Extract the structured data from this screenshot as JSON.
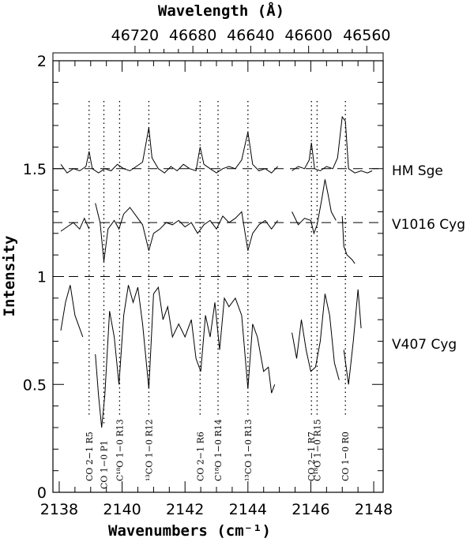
{
  "chart_data": {
    "type": "line",
    "xlabel": "Wavenumbers (cm⁻¹)",
    "ylabel": "Intensity",
    "top_xlabel": "Wavelength (Å)",
    "xlim": [
      2137.8,
      2148.3
    ],
    "ylim": [
      0,
      2
    ],
    "x_ticks": [
      2138,
      2140,
      2142,
      2144,
      2146,
      2148
    ],
    "x_tick_labels": [
      "2138",
      "2140",
      "2142",
      "2144",
      "2146",
      "2148"
    ],
    "y_ticks": [
      0,
      0.5,
      1,
      1.5,
      2
    ],
    "y_tick_labels": [
      "0",
      "0.5",
      "1",
      "1.5",
      "2"
    ],
    "top_ticks_wavenumber": [
      2140.41,
      2142.25,
      2144.09,
      2145.93,
      2147.78
    ],
    "top_tick_labels": [
      "46720",
      "46680",
      "46640",
      "46600",
      "46560"
    ],
    "reference_lines": [
      {
        "y": 1.5,
        "style": "dashed"
      },
      {
        "y": 1.25,
        "style": "dashed"
      },
      {
        "y": 1.0,
        "style": "dashed"
      }
    ],
    "line_markers": [
      {
        "x": 2138.95,
        "label": "CO 2−1 R5"
      },
      {
        "x": 2139.42,
        "label": "CO 1−0 P1"
      },
      {
        "x": 2139.92,
        "label": "C¹⁸O 1−0 R13"
      },
      {
        "x": 2140.85,
        "label": "¹³CO 1−0 R12"
      },
      {
        "x": 2142.48,
        "label": "CO 2−1 R6"
      },
      {
        "x": 2143.05,
        "label": "C¹⁸O 1−0 R14"
      },
      {
        "x": 2144.0,
        "label": "¹³CO 1−0 R13"
      },
      {
        "x": 2146.02,
        "label": "CO 2−1 R7"
      },
      {
        "x": 2146.2,
        "label": "C¹⁸O 1−0 R15"
      },
      {
        "x": 2147.1,
        "label": "CO 1−0 R0"
      }
    ],
    "series": [
      {
        "name": "HM Sge",
        "segments": [
          [
            [
              2138.05,
              1.52
            ],
            [
              2138.25,
              1.48
            ],
            [
              2138.45,
              1.5
            ],
            [
              2138.65,
              1.49
            ],
            [
              2138.85,
              1.51
            ],
            [
              2138.95,
              1.58
            ],
            [
              2139.05,
              1.5
            ],
            [
              2139.25,
              1.48
            ],
            [
              2139.45,
              1.5
            ],
            [
              2139.65,
              1.49
            ],
            [
              2139.85,
              1.52
            ],
            [
              2140.05,
              1.5
            ],
            [
              2140.25,
              1.49
            ],
            [
              2140.45,
              1.51
            ],
            [
              2140.65,
              1.53
            ],
            [
              2140.85,
              1.69
            ],
            [
              2140.95,
              1.55
            ],
            [
              2141.15,
              1.5
            ],
            [
              2141.35,
              1.48
            ],
            [
              2141.55,
              1.51
            ],
            [
              2141.75,
              1.49
            ],
            [
              2141.95,
              1.52
            ],
            [
              2142.15,
              1.5
            ],
            [
              2142.35,
              1.49
            ],
            [
              2142.48,
              1.6
            ],
            [
              2142.6,
              1.52
            ],
            [
              2142.8,
              1.5
            ],
            [
              2143.0,
              1.48
            ],
            [
              2143.2,
              1.5
            ],
            [
              2143.4,
              1.51
            ],
            [
              2143.6,
              1.5
            ],
            [
              2143.8,
              1.54
            ],
            [
              2144.0,
              1.67
            ],
            [
              2144.15,
              1.52
            ],
            [
              2144.35,
              1.49
            ],
            [
              2144.55,
              1.5
            ],
            [
              2144.75,
              1.48
            ],
            [
              2144.95,
              1.51
            ]
          ],
          [
            [
              2145.4,
              1.49
            ],
            [
              2145.6,
              1.51
            ],
            [
              2145.8,
              1.5
            ],
            [
              2145.95,
              1.54
            ],
            [
              2146.02,
              1.62
            ],
            [
              2146.12,
              1.5
            ],
            [
              2146.3,
              1.49
            ],
            [
              2146.5,
              1.51
            ],
            [
              2146.7,
              1.5
            ],
            [
              2146.85,
              1.55
            ],
            [
              2147.0,
              1.74
            ],
            [
              2147.1,
              1.72
            ],
            [
              2147.2,
              1.5
            ],
            [
              2147.4,
              1.48
            ],
            [
              2147.6,
              1.49
            ],
            [
              2147.8,
              1.48
            ],
            [
              2147.95,
              1.49
            ]
          ]
        ]
      },
      {
        "name": "V1016 Cyg",
        "segments": [
          [
            [
              2138.05,
              1.21
            ],
            [
              2138.25,
              1.23
            ],
            [
              2138.45,
              1.25
            ],
            [
              2138.65,
              1.22
            ],
            [
              2138.8,
              1.27
            ],
            [
              2138.95,
              1.22
            ]
          ],
          [
            [
              2139.15,
              1.34
            ],
            [
              2139.3,
              1.25
            ],
            [
              2139.42,
              1.07
            ],
            [
              2139.55,
              1.22
            ],
            [
              2139.75,
              1.26
            ],
            [
              2139.9,
              1.22
            ],
            [
              2140.05,
              1.29
            ],
            [
              2140.25,
              1.32
            ],
            [
              2140.45,
              1.28
            ],
            [
              2140.65,
              1.24
            ],
            [
              2140.85,
              1.12
            ],
            [
              2141.0,
              1.2
            ],
            [
              2141.2,
              1.22
            ],
            [
              2141.4,
              1.25
            ],
            [
              2141.6,
              1.24
            ],
            [
              2141.8,
              1.26
            ],
            [
              2142.0,
              1.23
            ],
            [
              2142.2,
              1.25
            ],
            [
              2142.4,
              1.2
            ],
            [
              2142.6,
              1.24
            ],
            [
              2142.8,
              1.26
            ],
            [
              2143.0,
              1.22
            ],
            [
              2143.2,
              1.28
            ],
            [
              2143.4,
              1.25
            ],
            [
              2143.6,
              1.27
            ],
            [
              2143.8,
              1.3
            ],
            [
              2144.0,
              1.12
            ],
            [
              2144.15,
              1.2
            ],
            [
              2144.35,
              1.24
            ],
            [
              2144.55,
              1.26
            ],
            [
              2144.75,
              1.22
            ],
            [
              2144.95,
              1.26
            ]
          ],
          [
            [
              2145.4,
              1.3
            ],
            [
              2145.6,
              1.24
            ],
            [
              2145.8,
              1.27
            ],
            [
              2146.0,
              1.26
            ],
            [
              2146.1,
              1.2
            ],
            [
              2146.2,
              1.24
            ],
            [
              2146.35,
              1.36
            ],
            [
              2146.45,
              1.45
            ],
            [
              2146.55,
              1.38
            ],
            [
              2146.65,
              1.3
            ],
            [
              2146.8,
              1.26
            ]
          ],
          [
            [
              2147.0,
              1.28
            ],
            [
              2147.05,
              1.14
            ],
            [
              2147.15,
              1.1
            ],
            [
              2147.3,
              1.08
            ],
            [
              2147.4,
              1.06
            ]
          ]
        ]
      },
      {
        "name": "V407 Cyg",
        "segments": [
          [
            [
              2138.05,
              0.75
            ],
            [
              2138.2,
              0.88
            ],
            [
              2138.35,
              0.96
            ],
            [
              2138.5,
              0.82
            ],
            [
              2138.65,
              0.76
            ],
            [
              2138.75,
              0.72
            ]
          ],
          [
            [
              2139.15,
              0.64
            ],
            [
              2139.25,
              0.45
            ],
            [
              2139.35,
              0.3
            ],
            [
              2139.45,
              0.45
            ],
            [
              2139.6,
              0.84
            ],
            [
              2139.75,
              0.72
            ],
            [
              2139.9,
              0.5
            ],
            [
              2140.05,
              0.82
            ],
            [
              2140.2,
              0.96
            ],
            [
              2140.35,
              0.88
            ],
            [
              2140.5,
              0.95
            ],
            [
              2140.65,
              0.78
            ],
            [
              2140.85,
              0.48
            ],
            [
              2141.0,
              0.92
            ],
            [
              2141.15,
              0.95
            ],
            [
              2141.3,
              0.8
            ],
            [
              2141.45,
              0.86
            ],
            [
              2141.6,
              0.72
            ],
            [
              2141.8,
              0.78
            ],
            [
              2142.0,
              0.72
            ],
            [
              2142.2,
              0.8
            ],
            [
              2142.35,
              0.62
            ],
            [
              2142.5,
              0.56
            ],
            [
              2142.65,
              0.82
            ],
            [
              2142.8,
              0.72
            ],
            [
              2142.95,
              0.88
            ],
            [
              2143.1,
              0.66
            ],
            [
              2143.25,
              0.9
            ],
            [
              2143.4,
              0.86
            ],
            [
              2143.6,
              0.9
            ],
            [
              2143.8,
              0.82
            ],
            [
              2144.0,
              0.48
            ],
            [
              2144.15,
              0.78
            ],
            [
              2144.3,
              0.72
            ],
            [
              2144.5,
              0.56
            ],
            [
              2144.65,
              0.58
            ],
            [
              2144.75,
              0.46
            ],
            [
              2144.85,
              0.5
            ]
          ],
          [
            [
              2145.4,
              0.74
            ],
            [
              2145.55,
              0.62
            ],
            [
              2145.7,
              0.8
            ],
            [
              2145.85,
              0.66
            ],
            [
              2146.0,
              0.56
            ],
            [
              2146.15,
              0.58
            ],
            [
              2146.3,
              0.7
            ],
            [
              2146.45,
              0.92
            ],
            [
              2146.6,
              0.82
            ],
            [
              2146.75,
              0.6
            ],
            [
              2146.9,
              0.52
            ]
          ],
          [
            [
              2147.05,
              0.66
            ],
            [
              2147.2,
              0.5
            ],
            [
              2147.35,
              0.7
            ],
            [
              2147.5,
              0.94
            ],
            [
              2147.6,
              0.76
            ]
          ]
        ]
      }
    ]
  }
}
